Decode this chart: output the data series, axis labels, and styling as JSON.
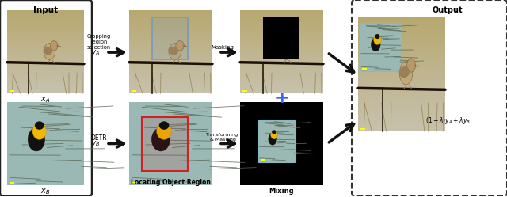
{
  "bg_color": "#ffffff",
  "input_label": "Input",
  "xA_label": "$x_A$",
  "xB_label": "$x_B$",
  "yA_label": "$y_A$",
  "yB_label": "$y_B$",
  "loc_label": "Locating Object Region",
  "mixing_label": "Mixing",
  "output_label": "Output",
  "cropping_label": "Cropping\nregion\nselection",
  "masking_label": "Masking",
  "detr_label": "DETR",
  "transform_label": "Transforming\n& Masking",
  "plus_color": "#3366ff",
  "arrow_color": "#111111",
  "imgA_sky_top": "#c8c090",
  "imgA_sky_bot": "#b8a060",
  "imgA_ground": "#8a7840",
  "imgB_bg": "#9ab8b0",
  "imgB_branch": "#607868"
}
